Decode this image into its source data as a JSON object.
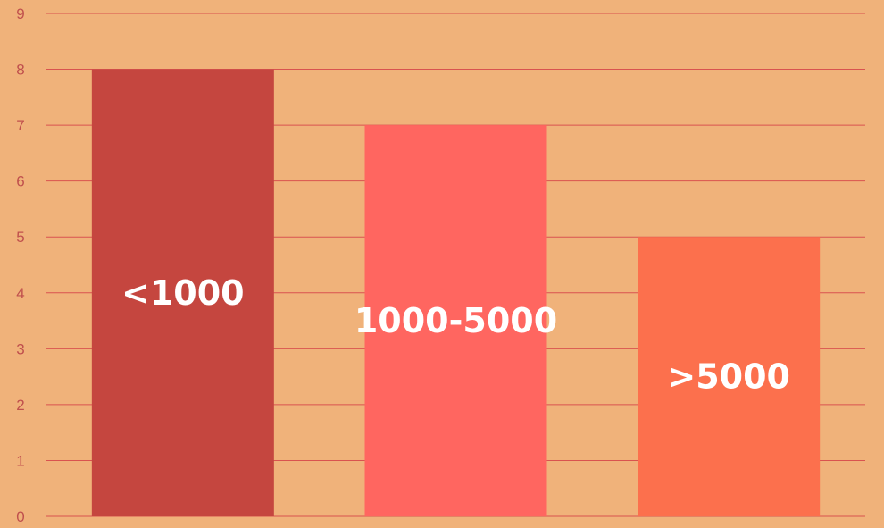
{
  "colors": {
    "background": "#F0B27A",
    "gridline": "#D9534F",
    "tick_text": "#C0504D",
    "bar_label_text": "#FFFFFF"
  },
  "chart_data": {
    "type": "bar",
    "categories": [
      "<1000",
      "1000-5000",
      ">5000"
    ],
    "values": [
      8,
      7,
      5
    ],
    "bar_colors": [
      "#C5463F",
      "#FF6660",
      "#FC704D"
    ],
    "title": "",
    "xlabel": "",
    "ylabel": "",
    "ylim": [
      0,
      9
    ],
    "yticks": [
      "0",
      "1",
      "2",
      "3",
      "4",
      "5",
      "6",
      "7",
      "8",
      "9"
    ],
    "grid": true,
    "legend": "none",
    "category_labels_inside_bars": true
  }
}
